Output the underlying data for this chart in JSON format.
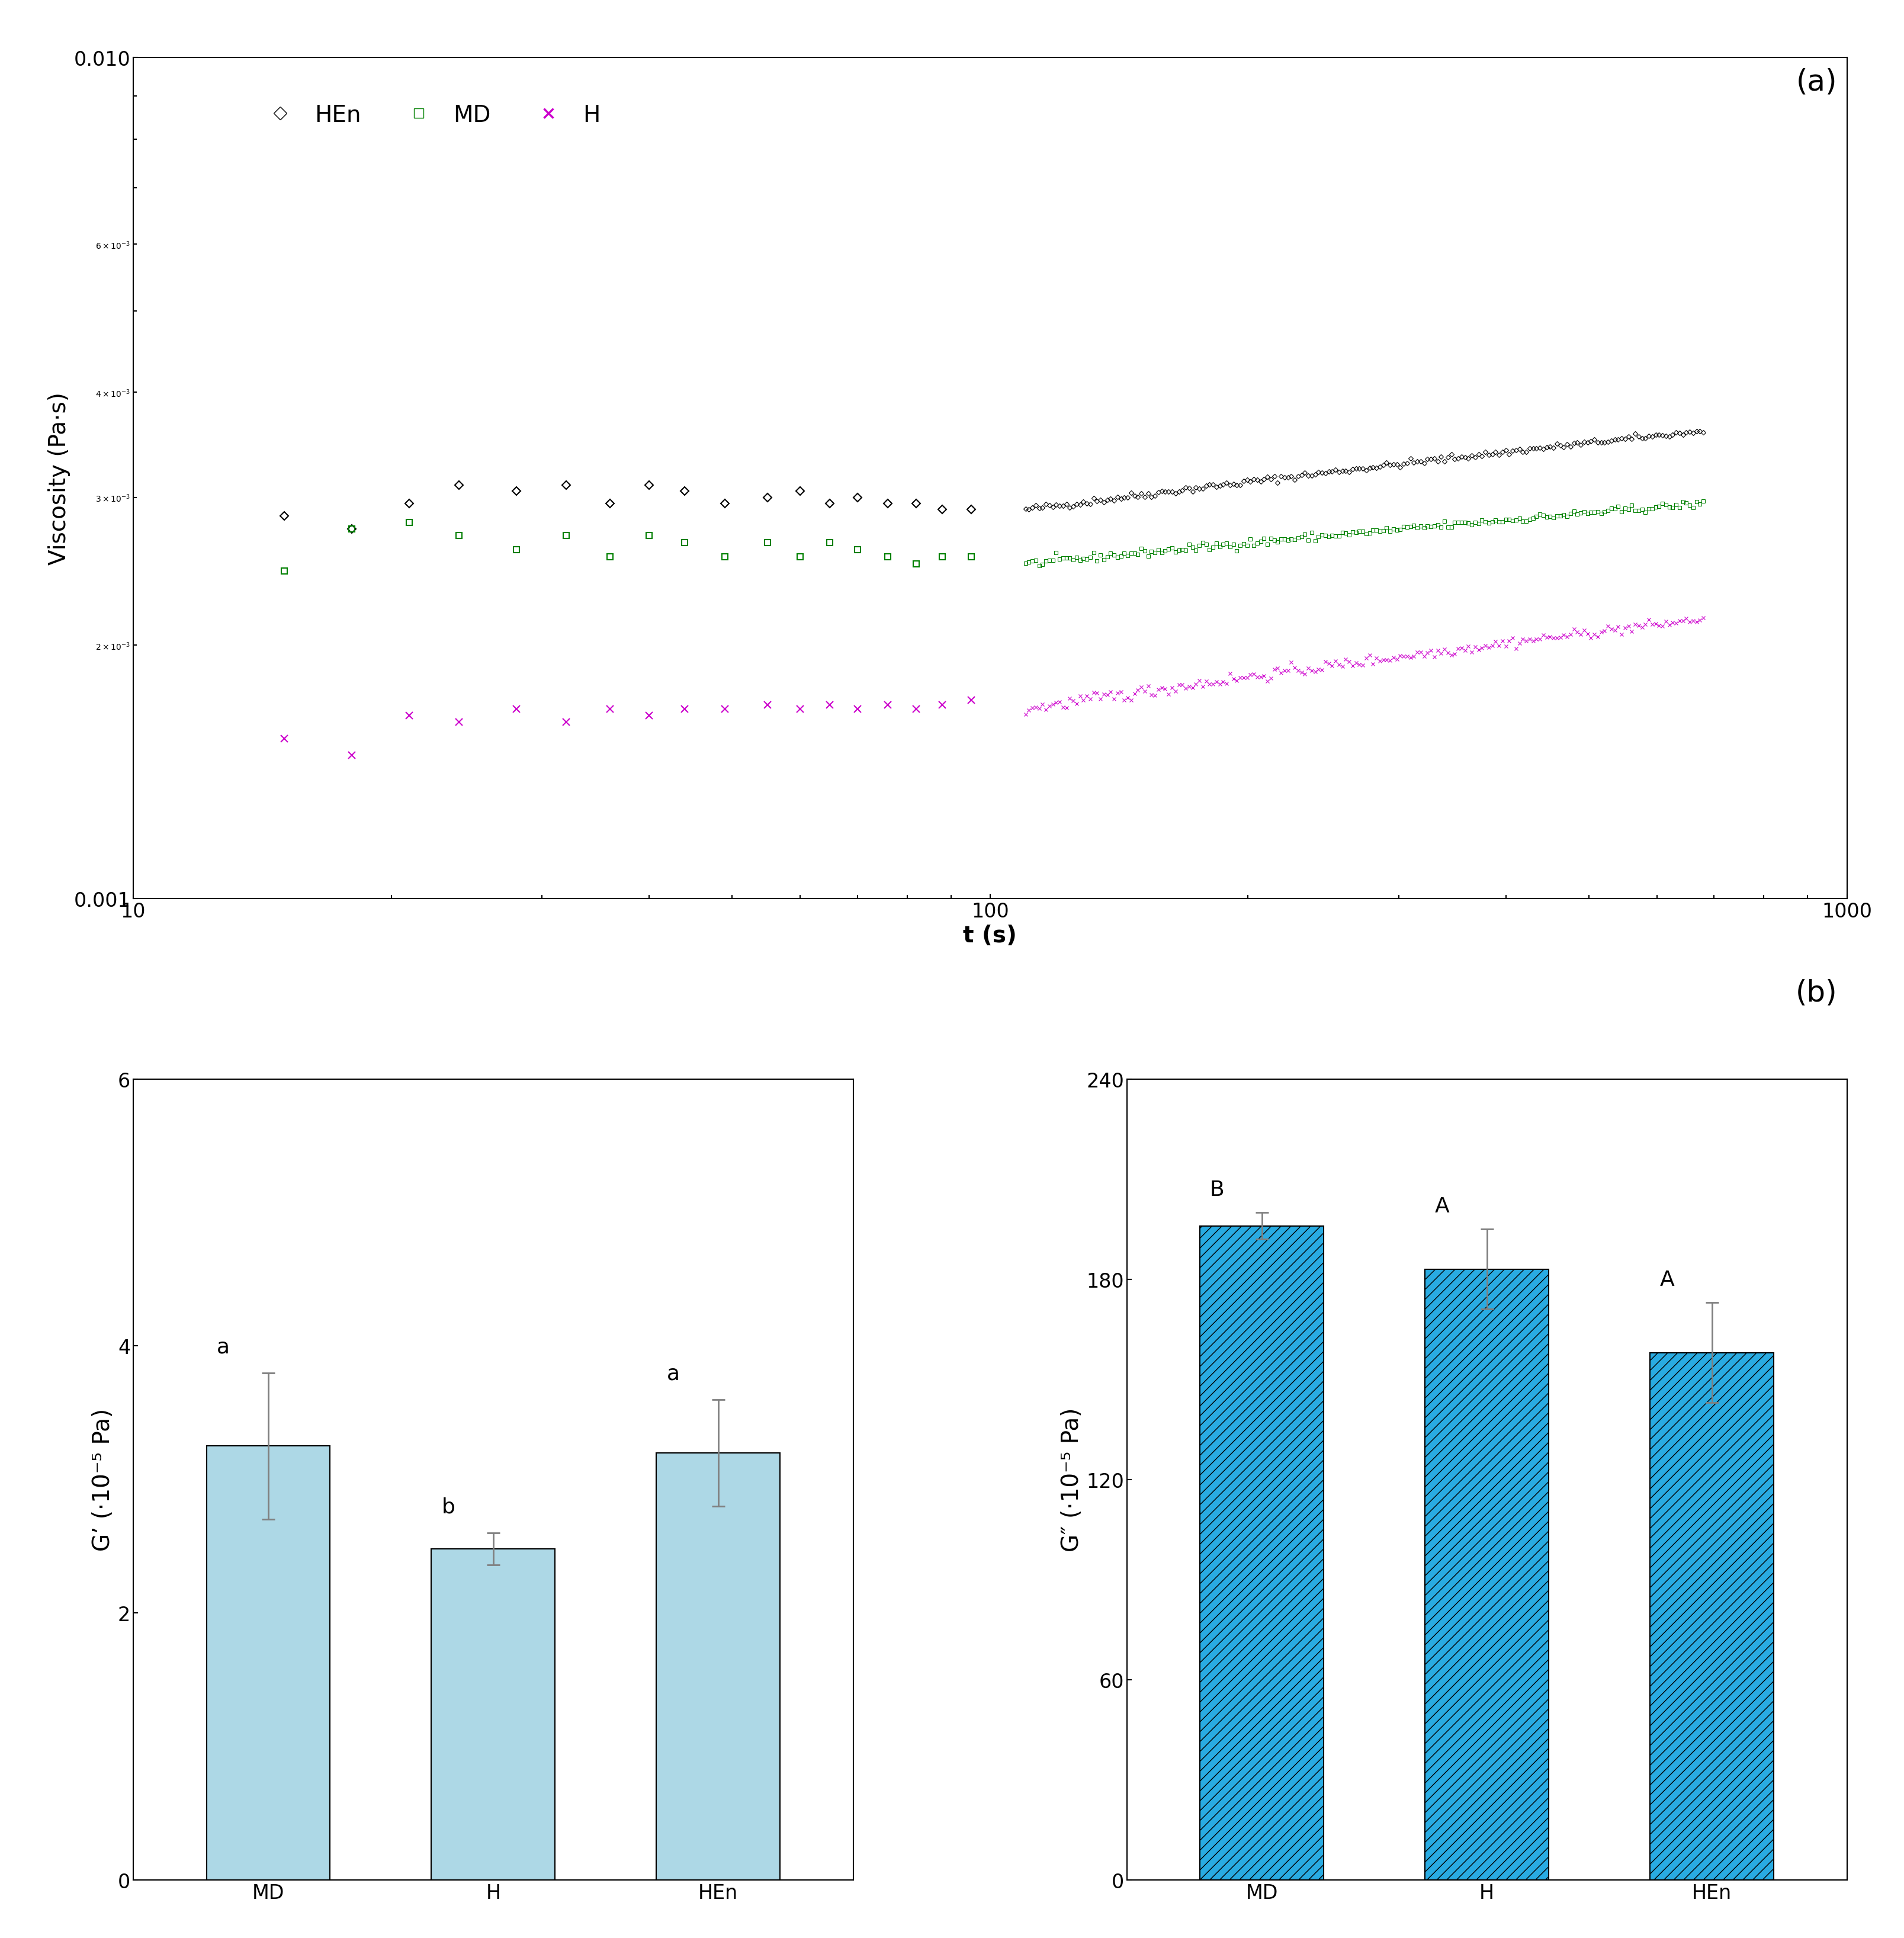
{
  "panel_a": {
    "ylabel": "Viscosity (Pa·s)",
    "xlabel": "t (s)",
    "xlim": [
      10,
      1000
    ],
    "ylim": [
      0.001,
      0.01
    ],
    "series": {
      "HEn": {
        "color": "#000000",
        "marker": "D",
        "markersize": 7,
        "label": "HEn",
        "x_sparse": [
          15,
          18,
          21,
          24,
          28,
          32,
          36,
          40,
          44,
          49,
          55,
          60,
          65,
          70,
          76,
          82,
          88,
          95
        ],
        "y_sparse": [
          0.00285,
          0.00275,
          0.00295,
          0.0031,
          0.00305,
          0.0031,
          0.00295,
          0.0031,
          0.00305,
          0.00295,
          0.003,
          0.00305,
          0.00295,
          0.003,
          0.00295,
          0.00295,
          0.0029,
          0.0029
        ],
        "x_dense_start": 110,
        "x_dense_end": 680,
        "x_dense_n": 200,
        "y_dense_start": 0.0029,
        "y_dense_end": 0.0036
      },
      "MD": {
        "color": "#008000",
        "marker": "s",
        "markersize": 7,
        "label": "MD",
        "x_sparse": [
          15,
          18,
          21,
          24,
          28,
          32,
          36,
          40,
          44,
          49,
          55,
          60,
          65,
          70,
          76,
          82,
          88,
          95
        ],
        "y_sparse": [
          0.00245,
          0.00275,
          0.0028,
          0.0027,
          0.0026,
          0.0027,
          0.00255,
          0.0027,
          0.00265,
          0.00255,
          0.00265,
          0.00255,
          0.00265,
          0.0026,
          0.00255,
          0.0025,
          0.00255,
          0.00255
        ],
        "x_dense_start": 110,
        "x_dense_end": 680,
        "x_dense_n": 200,
        "y_dense_start": 0.0025,
        "y_dense_end": 0.00295
      },
      "H": {
        "color": "#CC00CC",
        "marker": "x",
        "markersize": 8,
        "label": "H",
        "x_sparse": [
          15,
          18,
          21,
          24,
          28,
          32,
          36,
          40,
          44,
          49,
          55,
          60,
          65,
          70,
          76,
          82,
          88,
          95
        ],
        "y_sparse": [
          0.00155,
          0.00148,
          0.00165,
          0.00162,
          0.00168,
          0.00162,
          0.00168,
          0.00165,
          0.00168,
          0.00168,
          0.0017,
          0.00168,
          0.0017,
          0.00168,
          0.0017,
          0.00168,
          0.0017,
          0.00172
        ],
        "x_dense_start": 110,
        "x_dense_end": 680,
        "x_dense_n": 200,
        "y_dense_start": 0.00168,
        "y_dense_end": 0.00215
      }
    }
  },
  "panel_b1": {
    "ylabel": "G’ (·10⁻⁵ Pa)",
    "categories": [
      "MD",
      "H",
      "HEn"
    ],
    "values": [
      3.25,
      2.48,
      3.2
    ],
    "errors": [
      0.55,
      0.12,
      0.4
    ],
    "sig_labels": [
      "a",
      "b",
      "a"
    ],
    "bar_color": "#ADD8E6",
    "ylim": [
      0,
      6
    ],
    "yticks": [
      0,
      2,
      4,
      6
    ]
  },
  "panel_b2": {
    "ylabel": "G″ (·10⁻⁵ Pa)",
    "categories": [
      "MD",
      "H",
      "HEn"
    ],
    "values": [
      196,
      183,
      158
    ],
    "errors": [
      4,
      12,
      15
    ],
    "sig_labels": [
      "B",
      "A",
      "A"
    ],
    "bar_color": "#29ABE2",
    "ylim": [
      0,
      240
    ],
    "yticks": [
      0,
      60,
      120,
      180,
      240
    ]
  },
  "background_color": "#FFFFFF",
  "label_fontsize": 28,
  "tick_fontsize": 24,
  "sig_fontsize": 26,
  "panel_label_fontsize": 36
}
